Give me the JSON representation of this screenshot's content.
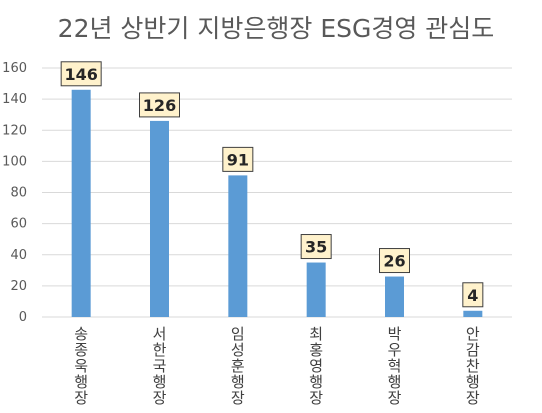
{
  "chart_data": {
    "type": "bar",
    "title": "22년 상반기 지방은행장 ESG경영 관심도",
    "categories": [
      "송종욱 행장",
      "서한국 행장",
      "임성훈 행장",
      "최홍영 행장",
      "박우혁 행장",
      "안감찬 행장"
    ],
    "values": [
      146,
      126,
      91,
      35,
      26,
      4
    ],
    "ylim": [
      0,
      160
    ],
    "yticks": [
      0,
      20,
      40,
      60,
      80,
      100,
      120,
      140,
      160
    ],
    "grid": true,
    "legend": "none",
    "colors": {
      "bar": "#5b9bd5",
      "label_fill": "#fff2cc",
      "label_border": "#3f3f3f",
      "grid": "#d9d9d9"
    }
  }
}
